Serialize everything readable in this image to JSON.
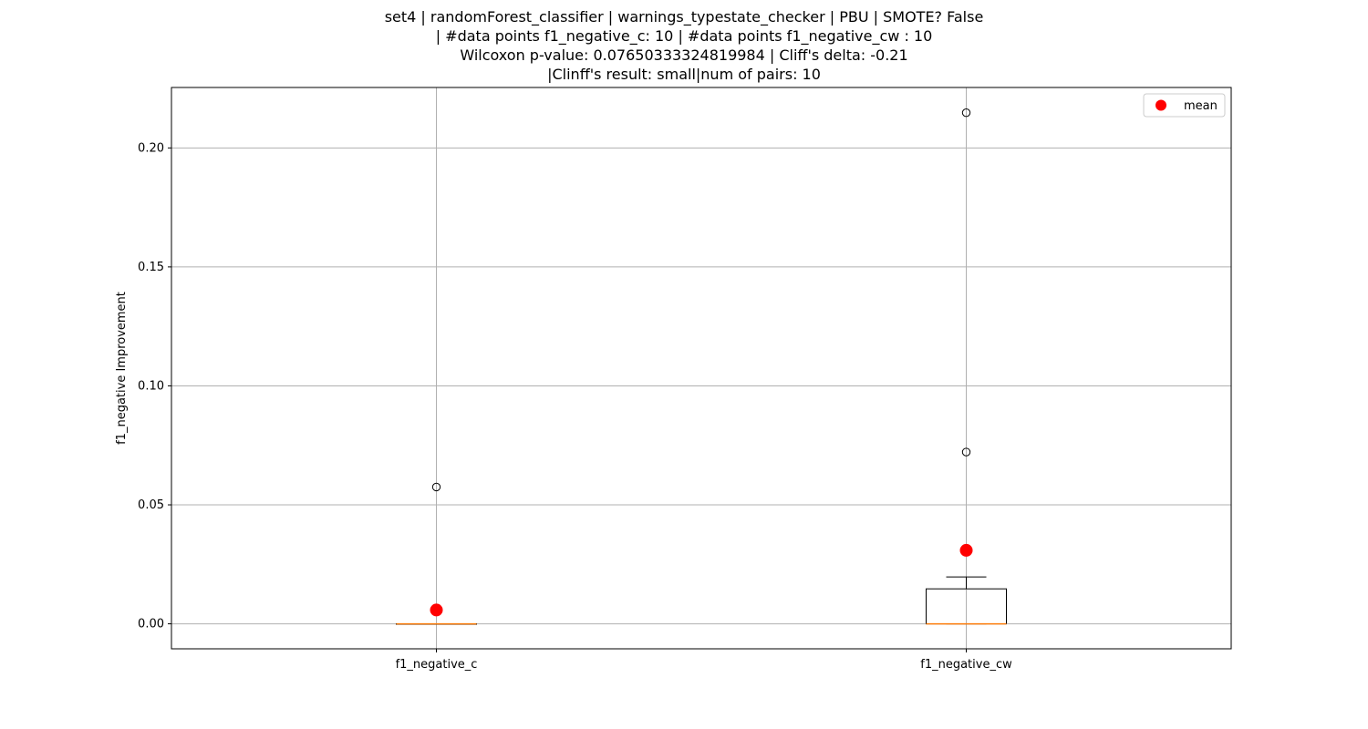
{
  "chart_data": {
    "type": "box",
    "title_lines": [
      "set4 | randomForest_classifier | warnings_typestate_checker | PBU | SMOTE? False",
      "| #data points f1_negative_c: 10 | #data points f1_negative_cw : 10",
      "Wilcoxon p-value: 0.07650333324819984 | Cliff's delta: -0.21",
      "|Clinff's result: small|num of pairs: 10"
    ],
    "ylabel": "f1_negative Improvement",
    "ylim": [
      -0.0105,
      0.2254
    ],
    "yticks": [
      0.0,
      0.05,
      0.1,
      0.15,
      0.2
    ],
    "ytick_labels": [
      "0.00",
      "0.05",
      "0.10",
      "0.15",
      "0.20"
    ],
    "grid": true,
    "legend": {
      "position": "top-right",
      "entries": [
        {
          "label": "mean",
          "color": "#ff0000",
          "marker": "circle"
        }
      ]
    },
    "categories": [
      "f1_negative_c",
      "f1_negative_cw"
    ],
    "boxes": [
      {
        "category": "f1_negative_c",
        "whisker_low": 0.0,
        "q1": 0.0,
        "median": 0.0,
        "q3": 0.0,
        "whisker_high": 0.0,
        "fliers": [
          0.0575
        ],
        "mean": 0.0058
      },
      {
        "category": "f1_negative_cw",
        "whisker_low": 0.0,
        "q1": 0.0,
        "median": 0.0,
        "q3": 0.0147,
        "whisker_high": 0.0197,
        "fliers": [
          0.0722,
          0.2148
        ],
        "mean": 0.0309
      }
    ],
    "colors": {
      "median": "#ff7f0e",
      "box": "#000000",
      "mean": "#ff0000",
      "grid": "#b0b0b0"
    }
  }
}
